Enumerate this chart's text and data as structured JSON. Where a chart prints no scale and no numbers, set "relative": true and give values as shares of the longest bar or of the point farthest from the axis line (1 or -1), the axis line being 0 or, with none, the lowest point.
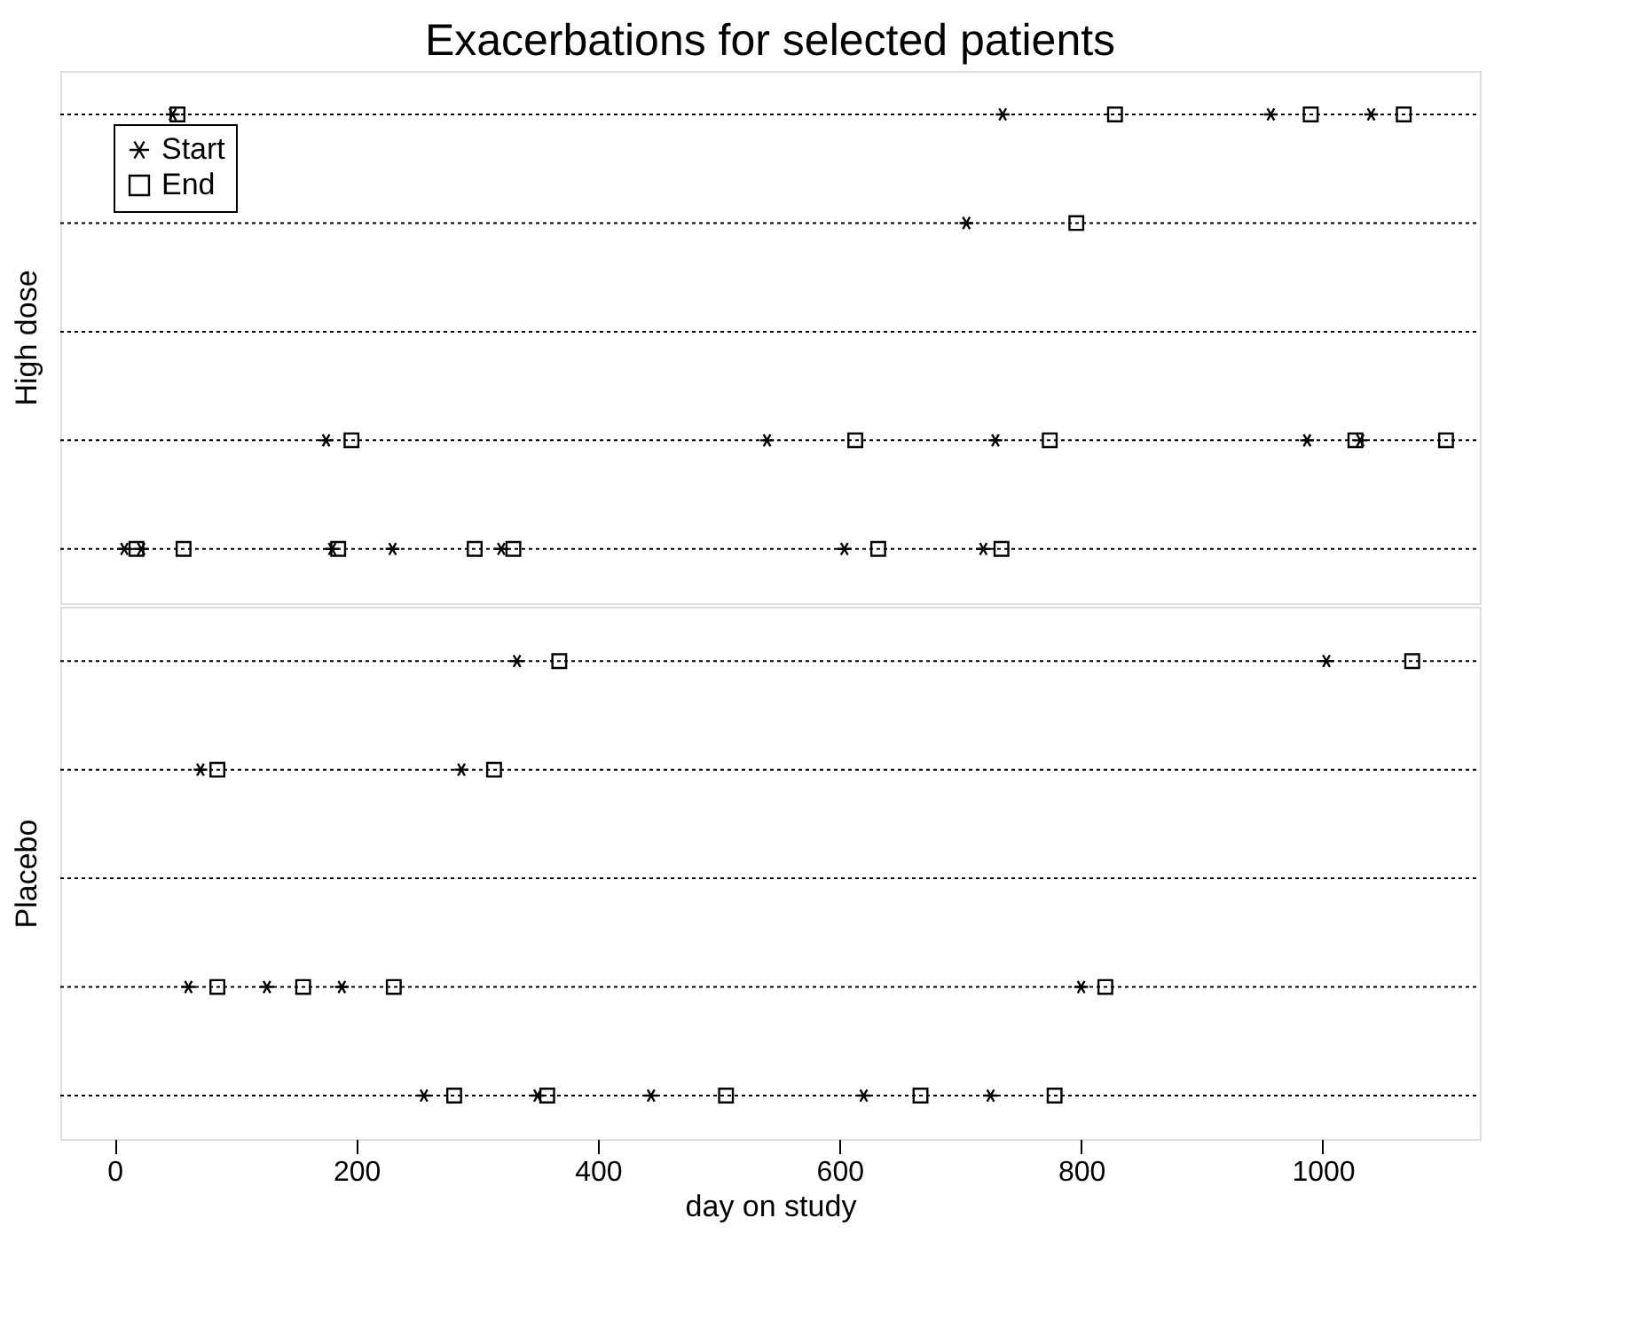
{
  "chart_data": [
    {
      "type": "scatter",
      "title": "Exacerbations for selected patients",
      "ylabel": "High dose",
      "relative": true,
      "xlim": [
        -45,
        1130
      ],
      "xticks": [
        0,
        200,
        400,
        600,
        800,
        1000
      ],
      "tick_labels": false,
      "grid": false,
      "legend": "top left",
      "ref_lines": [
        {
          "axis": "y",
          "value": 0,
          "line_style": "dotted"
        },
        {
          "axis": "y",
          "value": 0.25,
          "line_style": "dotted"
        },
        {
          "axis": "y",
          "value": 0.5,
          "line_style": "dotted"
        },
        {
          "axis": "y",
          "value": 0.75,
          "line_style": "dotted"
        },
        {
          "axis": "y",
          "value": 1,
          "line_style": "dotted"
        }
      ],
      "series": [
        {
          "name": "Start",
          "color": "#000000",
          "marker": "cross",
          "x": [
            48,
            735,
            957,
            1040,
            705,
            175,
            540,
            729,
            987,
            1031,
            8,
            22,
            180,
            230,
            320,
            604,
            719
          ],
          "values": [
            1,
            1,
            1,
            1,
            0.75,
            0.25,
            0.25,
            0.25,
            0.25,
            0.25,
            0,
            0,
            0,
            0,
            0,
            0,
            0
          ]
        },
        {
          "name": "End",
          "color": "#000000",
          "marker": "square",
          "x": [
            52,
            828,
            990,
            1067,
            796,
            196,
            613,
            774,
            1027,
            1102,
            18,
            57,
            185,
            298,
            330,
            632,
            734
          ],
          "values": [
            1,
            1,
            1,
            1,
            0.75,
            0.25,
            0.25,
            0.25,
            0.25,
            0.25,
            0,
            0,
            0,
            0,
            0,
            0,
            0
          ]
        }
      ]
    },
    {
      "type": "scatter",
      "xlabel": "day on study",
      "ylabel": "Placebo",
      "relative": true,
      "xlim": [
        -45,
        1130
      ],
      "xticks": [
        0,
        200,
        400,
        600,
        800,
        1000
      ],
      "tick_labels": "x",
      "grid": false,
      "ref_lines": [
        {
          "axis": "y",
          "value": 0,
          "line_style": "dotted"
        },
        {
          "axis": "y",
          "value": 0.25,
          "line_style": "dotted"
        },
        {
          "axis": "y",
          "value": 0.5,
          "line_style": "dotted"
        },
        {
          "axis": "y",
          "value": 0.75,
          "line_style": "dotted"
        },
        {
          "axis": "y",
          "value": 1,
          "line_style": "dotted"
        }
      ],
      "series": [
        {
          "color": "#000000",
          "marker": "cross",
          "x": [
            333,
            1003,
            71,
            287,
            61,
            126,
            188,
            800,
            256,
            350,
            444,
            620,
            725
          ],
          "values": [
            1,
            1,
            0.75,
            0.75,
            0.25,
            0.25,
            0.25,
            0.25,
            0,
            0,
            0,
            0,
            0
          ]
        },
        {
          "color": "#000000",
          "marker": "square",
          "x": [
            368,
            1074,
            85,
            314,
            85,
            156,
            231,
            820,
            281,
            358,
            506,
            667,
            778
          ],
          "values": [
            1,
            1,
            0.75,
            0.75,
            0.25,
            0.25,
            0.25,
            0.25,
            0,
            0,
            0,
            0,
            0
          ]
        }
      ]
    }
  ]
}
